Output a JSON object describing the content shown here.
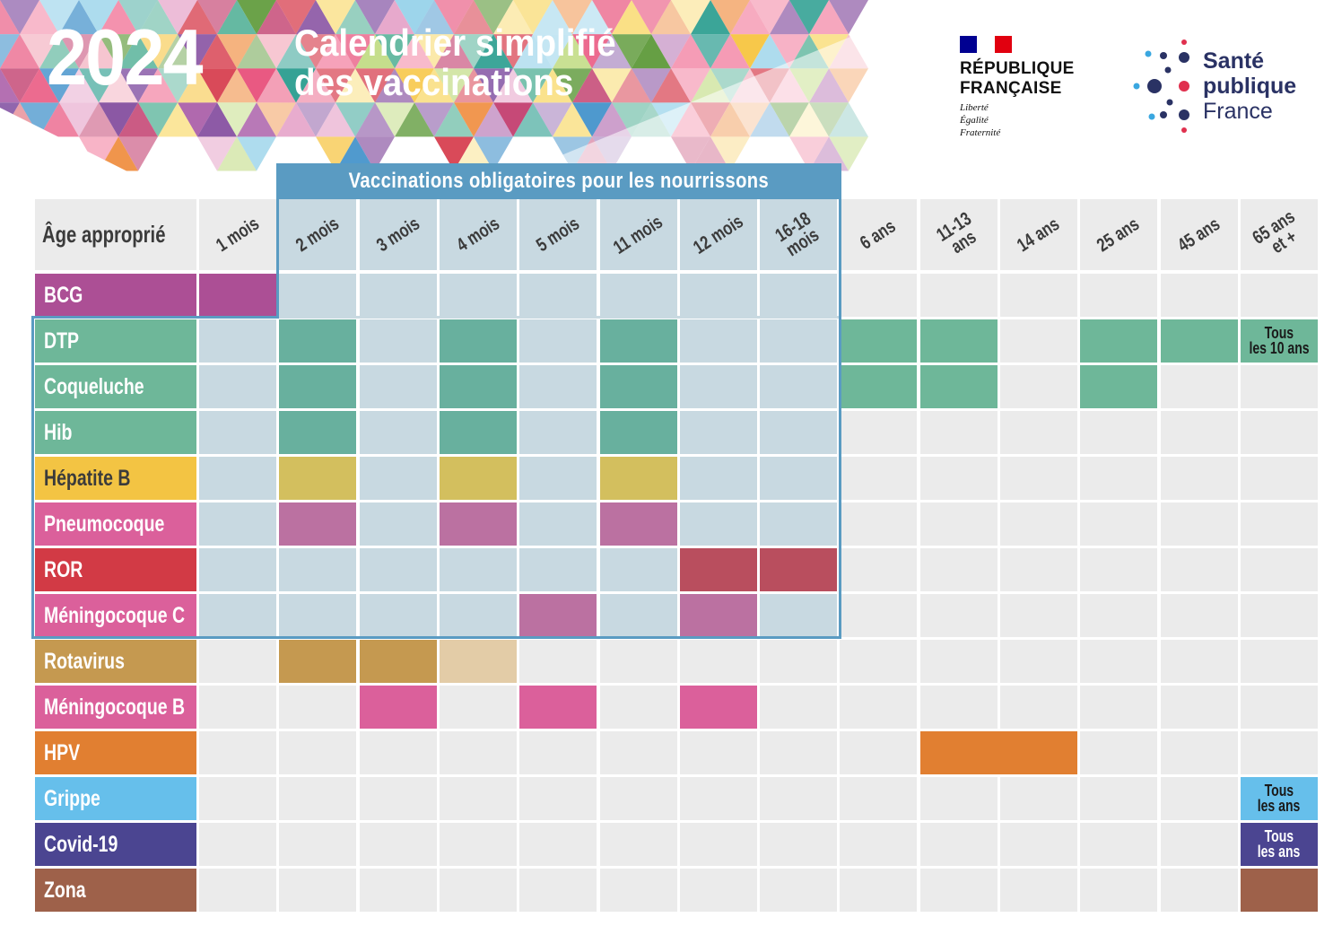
{
  "header": {
    "year": "2024",
    "title_line1": "Calendrier simplifié",
    "title_line2": "des vaccinations"
  },
  "logos": {
    "republique": {
      "name_line1": "RÉPUBLIQUE",
      "name_line2": "FRANÇAISE",
      "motto_line1": "Liberté",
      "motto_line2": "Égalité",
      "motto_line3": "Fraternité",
      "flag_colors": [
        "#000091",
        "#ffffff",
        "#e1000f"
      ]
    },
    "sante_publique": {
      "line1": "Santé",
      "line2": "publique",
      "line3": "France",
      "colors": {
        "navy": "#2a3264",
        "red": "#e0304e",
        "blue": "#3aa7e0"
      }
    }
  },
  "table": {
    "age_header": "Âge approprié",
    "mandatory_banner": "Vaccinations obligatoires pour les nourrissons",
    "columns": [
      {
        "label": "1 mois",
        "lines": [
          "1 mois"
        ]
      },
      {
        "label": "2 mois",
        "lines": [
          "2 mois"
        ]
      },
      {
        "label": "3 mois",
        "lines": [
          "3 mois"
        ]
      },
      {
        "label": "4 mois",
        "lines": [
          "4 mois"
        ]
      },
      {
        "label": "5 mois",
        "lines": [
          "5 mois"
        ]
      },
      {
        "label": "11 mois",
        "lines": [
          "11 mois"
        ]
      },
      {
        "label": "12 mois",
        "lines": [
          "12 mois"
        ]
      },
      {
        "label": "16-18 mois",
        "lines": [
          "16-18",
          "mois"
        ]
      },
      {
        "label": "6 ans",
        "lines": [
          "6 ans"
        ]
      },
      {
        "label": "11-13 ans",
        "lines": [
          "11-13",
          "ans"
        ]
      },
      {
        "label": "14 ans",
        "lines": [
          "14 ans"
        ]
      },
      {
        "label": "25 ans",
        "lines": [
          "25 ans"
        ]
      },
      {
        "label": "45 ans",
        "lines": [
          "45 ans"
        ]
      },
      {
        "label": "65 ans et +",
        "lines": [
          "65 ans",
          "et +"
        ]
      }
    ],
    "rows": [
      {
        "name": "BCG",
        "color": "#ac4f95",
        "text_color": "#ffffff",
        "cells": [
          {
            "col": 0,
            "color": "#ac4f95"
          }
        ]
      },
      {
        "name": "DTP",
        "color": "#6eb799",
        "text_color": "#ffffff",
        "cells": [
          {
            "col": 1,
            "color": "#68b09e"
          },
          {
            "col": 3,
            "color": "#68b09e"
          },
          {
            "col": 5,
            "color": "#68b09e"
          },
          {
            "col": 8,
            "color": "#6eb799"
          },
          {
            "col": 9,
            "color": "#6eb799"
          },
          {
            "col": 11,
            "color": "#6eb799"
          },
          {
            "col": 12,
            "color": "#6eb799"
          },
          {
            "col": 13,
            "color": "#6eb799",
            "note": [
              "Tous",
              "les 10 ans"
            ],
            "note_color": "#1a1a1a"
          }
        ]
      },
      {
        "name": "Coqueluche",
        "color": "#6eb799",
        "text_color": "#ffffff",
        "cells": [
          {
            "col": 1,
            "color": "#68b09e"
          },
          {
            "col": 3,
            "color": "#68b09e"
          },
          {
            "col": 5,
            "color": "#68b09e"
          },
          {
            "col": 8,
            "color": "#6eb799"
          },
          {
            "col": 9,
            "color": "#6eb799"
          },
          {
            "col": 11,
            "color": "#6eb799"
          }
        ]
      },
      {
        "name": "Hib",
        "color": "#6eb799",
        "text_color": "#ffffff",
        "cells": [
          {
            "col": 1,
            "color": "#68b09e"
          },
          {
            "col": 3,
            "color": "#68b09e"
          },
          {
            "col": 5,
            "color": "#68b09e"
          }
        ]
      },
      {
        "name": "Hépatite B",
        "color": "#f3c443",
        "text_color": "#3b3b3b",
        "cells": [
          {
            "col": 1,
            "color": "#d3bf5e"
          },
          {
            "col": 3,
            "color": "#d3bf5e"
          },
          {
            "col": 5,
            "color": "#d3bf5e"
          }
        ]
      },
      {
        "name": "Pneumocoque",
        "color": "#db609b",
        "text_color": "#ffffff",
        "cells": [
          {
            "col": 1,
            "color": "#bb71a1"
          },
          {
            "col": 3,
            "color": "#bb71a1"
          },
          {
            "col": 5,
            "color": "#bb71a1"
          }
        ]
      },
      {
        "name": "ROR",
        "color": "#d23a45",
        "text_color": "#ffffff",
        "cells": [
          {
            "col": 6,
            "color": "#b94e5e"
          },
          {
            "col": 7,
            "color": "#b94e5e"
          }
        ]
      },
      {
        "name": "Méningocoque C",
        "color": "#db609b",
        "text_color": "#ffffff",
        "cells": [
          {
            "col": 4,
            "color": "#bb71a1"
          },
          {
            "col": 6,
            "color": "#bb71a1"
          }
        ]
      },
      {
        "name": "Rotavirus",
        "color": "#c59950",
        "text_color": "#ffffff",
        "cells": [
          {
            "col": 1,
            "color": "#c59950"
          },
          {
            "col": 2,
            "color": "#c59950"
          },
          {
            "col": 3,
            "color": "#e3cca7"
          }
        ]
      },
      {
        "name": "Méningocoque B",
        "color": "#db609b",
        "text_color": "#ffffff",
        "cells": [
          {
            "col": 2,
            "color": "#db609b"
          },
          {
            "col": 4,
            "color": "#db609b"
          },
          {
            "col": 6,
            "color": "#db609b"
          }
        ]
      },
      {
        "name": "HPV",
        "color": "#e17f31",
        "text_color": "#ffffff",
        "cells": [
          {
            "col": 9,
            "color": "#e17f31",
            "span": 2
          }
        ]
      },
      {
        "name": "Grippe",
        "color": "#66bfeb",
        "text_color": "#ffffff",
        "cells": [
          {
            "col": 13,
            "color": "#66bfeb",
            "note": [
              "Tous",
              "les ans"
            ],
            "note_color": "#1a1a1a"
          }
        ]
      },
      {
        "name": "Covid-19",
        "color": "#4b4591",
        "text_color": "#ffffff",
        "cells": [
          {
            "col": 13,
            "color": "#4b4591",
            "note": [
              "Tous",
              "les ans"
            ],
            "note_color": "#ffffff"
          }
        ]
      },
      {
        "name": "Zona",
        "color": "#9e614a",
        "text_color": "#ffffff",
        "cells": [
          {
            "col": 13,
            "color": "#9e614a"
          }
        ]
      }
    ]
  },
  "colors": {
    "grid_empty": "#ebebeb",
    "grid_mandatory": "#c8d9e1",
    "mandatory_frame": "#5a9bc2"
  }
}
